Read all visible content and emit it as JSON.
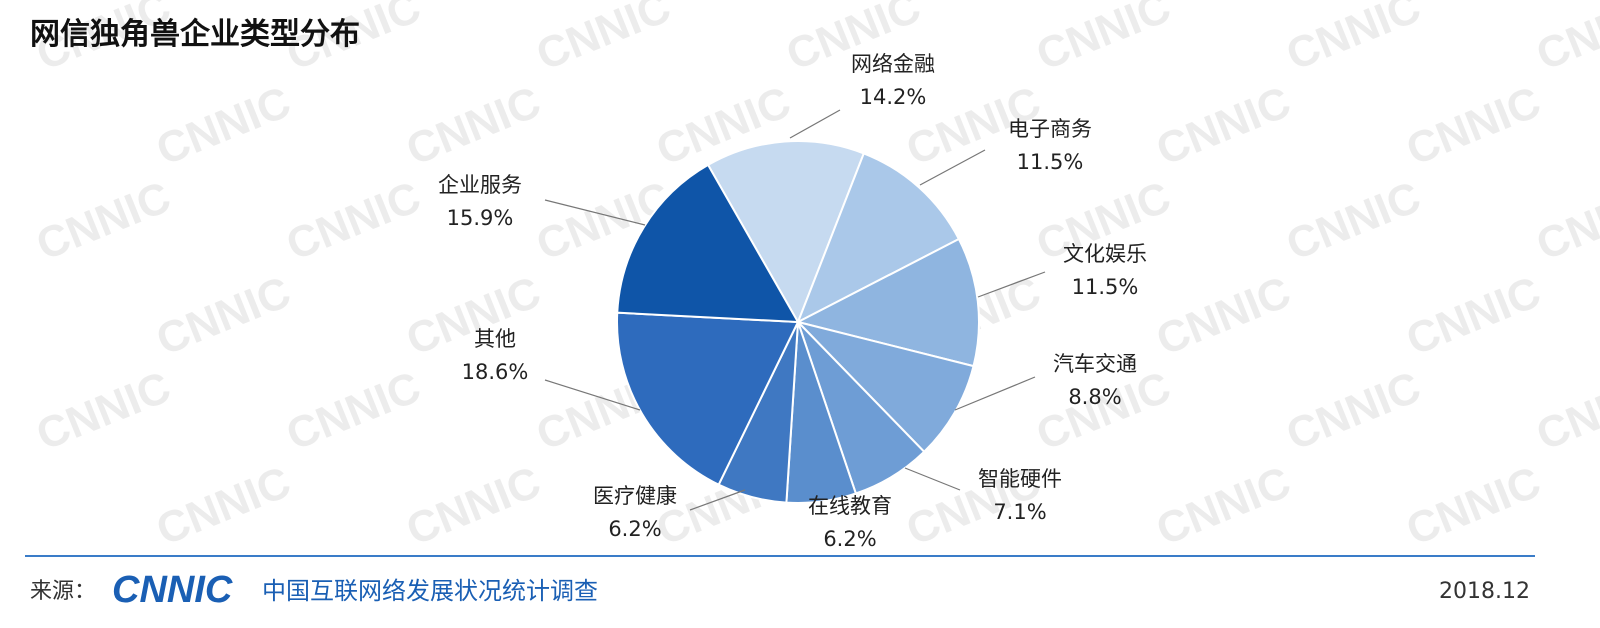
{
  "chart_data": {
    "type": "pie",
    "title": "网信独角兽企业类型分布",
    "categories": [
      "网络金融",
      "电子商务",
      "文化娱乐",
      "汽车交通",
      "智能硬件",
      "在线教育",
      "医疗健康",
      "其他",
      "企业服务"
    ],
    "values": [
      14.2,
      11.5,
      11.5,
      8.8,
      7.1,
      6.2,
      6.2,
      18.6,
      15.9
    ],
    "value_labels": [
      "14.2%",
      "11.5%",
      "11.5%",
      "8.8%",
      "7.1%",
      "6.2%",
      "6.2%",
      "18.6%",
      "15.9%"
    ],
    "colors": [
      "#c6daf0",
      "#aac8e9",
      "#8fb5e0",
      "#80aadb",
      "#6e9dd5",
      "#5a8ecd",
      "#3f78c2",
      "#2e6bbd",
      "#0f55a8"
    ],
    "watermark": "CNNIC"
  },
  "footer": {
    "source_label": "来源：",
    "logo": "CNNIC",
    "source": "中国互联网络发展状况统计调查",
    "date": "2018.12"
  }
}
